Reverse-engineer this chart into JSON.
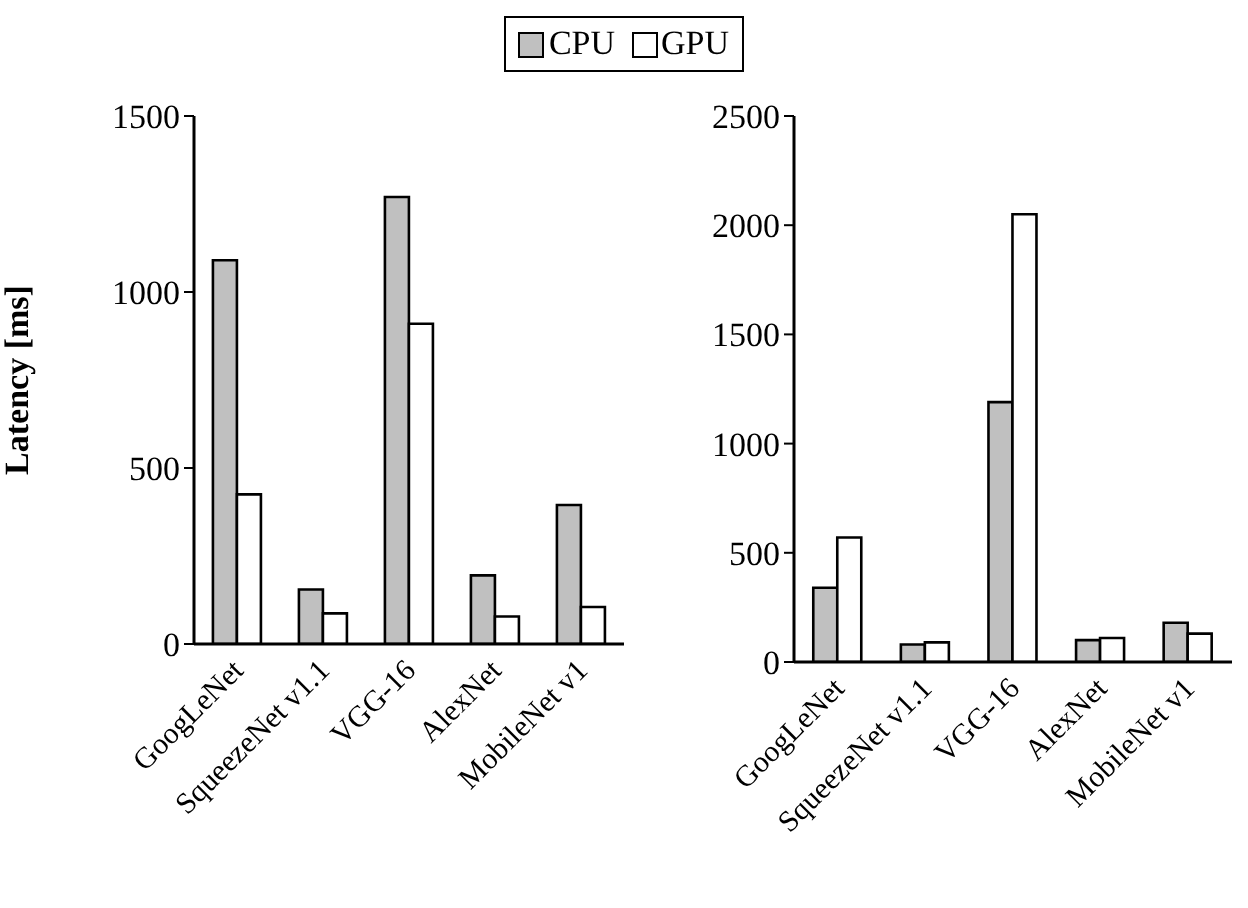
{
  "chart_data": [
    {
      "type": "bar",
      "ylabel": "Latency [ms]",
      "categories": [
        "GoogLeNet",
        "SqueezeNet v1.1",
        "VGG-16",
        "AlexNet",
        "MobileNet v1"
      ],
      "series": [
        {
          "name": "CPU",
          "color": "#c0c0c0",
          "values": [
            1090,
            155,
            1270,
            195,
            395
          ]
        },
        {
          "name": "GPU",
          "color": "#ffffff",
          "values": [
            425,
            87,
            910,
            78,
            105
          ]
        }
      ],
      "ylim": [
        0,
        1500
      ],
      "yticks": [
        0,
        500,
        1000,
        1500
      ],
      "grid": false,
      "legend": "top"
    },
    {
      "type": "bar",
      "categories": [
        "GoogLeNet",
        "SqueezeNet v1.1",
        "VGG-16",
        "AlexNet",
        "MobileNet v1"
      ],
      "series": [
        {
          "color": "#c0c0c0",
          "values": [
            340,
            80,
            1190,
            100,
            180
          ]
        },
        {
          "color": "#ffffff",
          "values": [
            570,
            90,
            2050,
            110,
            130
          ]
        }
      ],
      "ylim": [
        0,
        2500
      ],
      "yticks": [
        0,
        500,
        1000,
        1500,
        2000,
        2500
      ],
      "grid": false
    }
  ]
}
